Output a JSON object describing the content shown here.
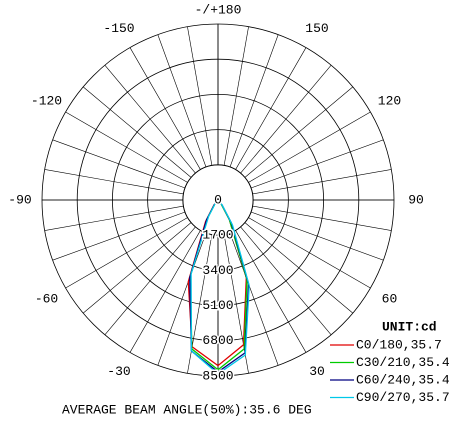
{
  "chart_data": {
    "type": "polar",
    "unit": "UNIT:cd",
    "footer": "AVERAGE BEAM ANGLE(50%):35.6 DEG",
    "rlim": [
      0,
      8500
    ],
    "rticks": [
      0,
      1700,
      3400,
      5100,
      6800,
      8500
    ],
    "angle_ticks": [
      -150,
      -120,
      -90,
      -60,
      -30,
      30,
      60,
      90,
      120,
      150,
      {
        "value": 180,
        "label": "-/+180"
      }
    ],
    "x": [
      -90,
      -80,
      -70,
      -60,
      -50,
      -40,
      -30,
      -20,
      -10,
      0,
      10,
      20,
      30,
      40,
      50,
      60,
      70,
      80,
      90
    ],
    "series": [
      {
        "name": "C0/180,35.7",
        "color": "#e00000",
        "values": [
          0,
          0,
          0,
          0,
          0,
          300,
          1200,
          4200,
          7200,
          8000,
          7100,
          4000,
          1100,
          250,
          0,
          0,
          0,
          0,
          0
        ]
      },
      {
        "name": "C30/210,35.4",
        "color": "#00cc00",
        "values": [
          0,
          0,
          0,
          0,
          0,
          200,
          1000,
          3900,
          7300,
          8200,
          7300,
          4100,
          1100,
          200,
          0,
          0,
          0,
          0,
          0
        ]
      },
      {
        "name": "C60/240,35.4",
        "color": "#000080",
        "values": [
          0,
          0,
          0,
          0,
          0,
          250,
          1100,
          4000,
          7400,
          8300,
          7500,
          4300,
          1300,
          300,
          0,
          0,
          0,
          0,
          0
        ]
      },
      {
        "name": "C90/270,35.7",
        "color": "#00c8e8",
        "values": [
          0,
          0,
          0,
          0,
          0,
          200,
          900,
          3800,
          7400,
          8400,
          7600,
          4400,
          1400,
          300,
          0,
          0,
          0,
          0,
          0
        ]
      }
    ]
  }
}
